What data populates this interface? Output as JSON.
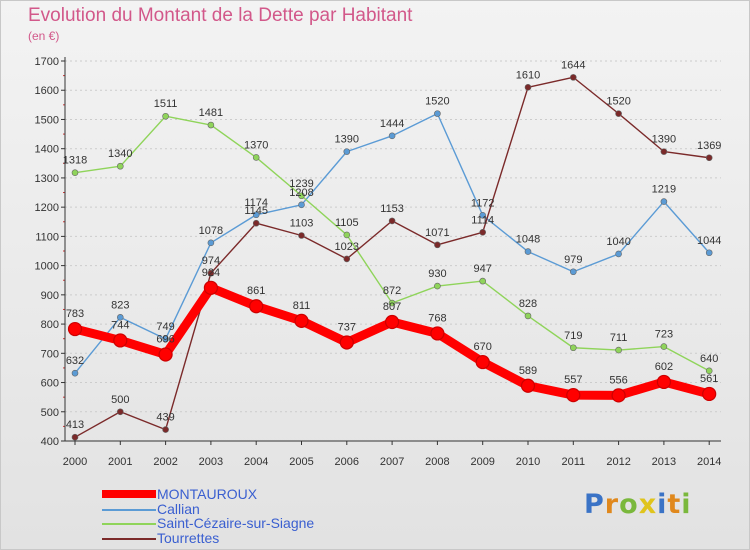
{
  "title": "Evolution du Montant de la Dette par Habitant",
  "subtitle": "(en €)",
  "logo": [
    "P",
    "r",
    "o",
    "x",
    "i",
    "t",
    "i"
  ],
  "colors": {
    "title": "#d2588a",
    "axis": "#333333",
    "tick_label": "#333333",
    "value_label": "#333333",
    "legend_text": "#3a5fd0",
    "grid": "#cccccc",
    "background_top": "#f3f3f3",
    "background_bottom": "#e2e2e2"
  },
  "chart_data": {
    "type": "line",
    "title": "Evolution du Montant de la Dette par Habitant",
    "subtitle": "(en €)",
    "x": [
      "2000",
      "2001",
      "2002",
      "2003",
      "2004",
      "2005",
      "2006",
      "2007",
      "2008",
      "2009",
      "2010",
      "2011",
      "2012",
      "2013",
      "2014"
    ],
    "ylim": [
      400,
      1700
    ],
    "yticks": [
      400,
      500,
      600,
      700,
      800,
      900,
      1000,
      1100,
      1200,
      1300,
      1400,
      1500,
      1600,
      1700
    ],
    "grid": "horizontal",
    "legend_placement": "bottom-left",
    "series": [
      {
        "name": "MONTAUROUX",
        "color": "#ff0000",
        "bold": true,
        "values": [
          783,
          744,
          696,
          924,
          861,
          811,
          737,
          807,
          768,
          670,
          589,
          557,
          556,
          602,
          561
        ],
        "labels": [
          "783",
          "744",
          "696",
          "924",
          "861",
          "811",
          "737",
          "807",
          "768",
          "670",
          "589",
          "557",
          "556",
          "602",
          "561"
        ]
      },
      {
        "name": "Callian",
        "color": "#5b9bd5",
        "values": [
          632,
          823,
          749,
          1078,
          1174,
          1208,
          1390,
          1444,
          1520,
          1172,
          1048,
          979,
          1040,
          1219,
          1044
        ],
        "labels": [
          "632",
          "823",
          "749",
          "1078",
          "1174",
          "1208",
          "1390",
          "1444",
          "1520",
          "1172",
          "1048",
          "979",
          "1040",
          "1219",
          "1044"
        ]
      },
      {
        "name": "Saint-Cézaire-sur-Siagne",
        "color": "#8fd45a",
        "values": [
          1318,
          1340,
          1511,
          1481,
          1370,
          1239,
          1105,
          872,
          930,
          947,
          828,
          719,
          711,
          723,
          640
        ],
        "labels": [
          "1318",
          "1340",
          "1511",
          "1481",
          "1370",
          "1239",
          "1105",
          "872",
          "930",
          "947",
          "828",
          "719",
          "711",
          "723",
          "640"
        ]
      },
      {
        "name": "Tourrettes",
        "color": "#7b2a2a",
        "values": [
          413,
          500,
          439,
          974,
          1145,
          1103,
          1023,
          1153,
          1071,
          1114,
          1610,
          1644,
          1520,
          1390,
          1369
        ],
        "labels": [
          "413",
          "500",
          "439",
          "974",
          "1145",
          "1103",
          "1023",
          "1153",
          "1071",
          "1114",
          "1610",
          "1644",
          "1520",
          "1390",
          "1369"
        ]
      }
    ]
  }
}
